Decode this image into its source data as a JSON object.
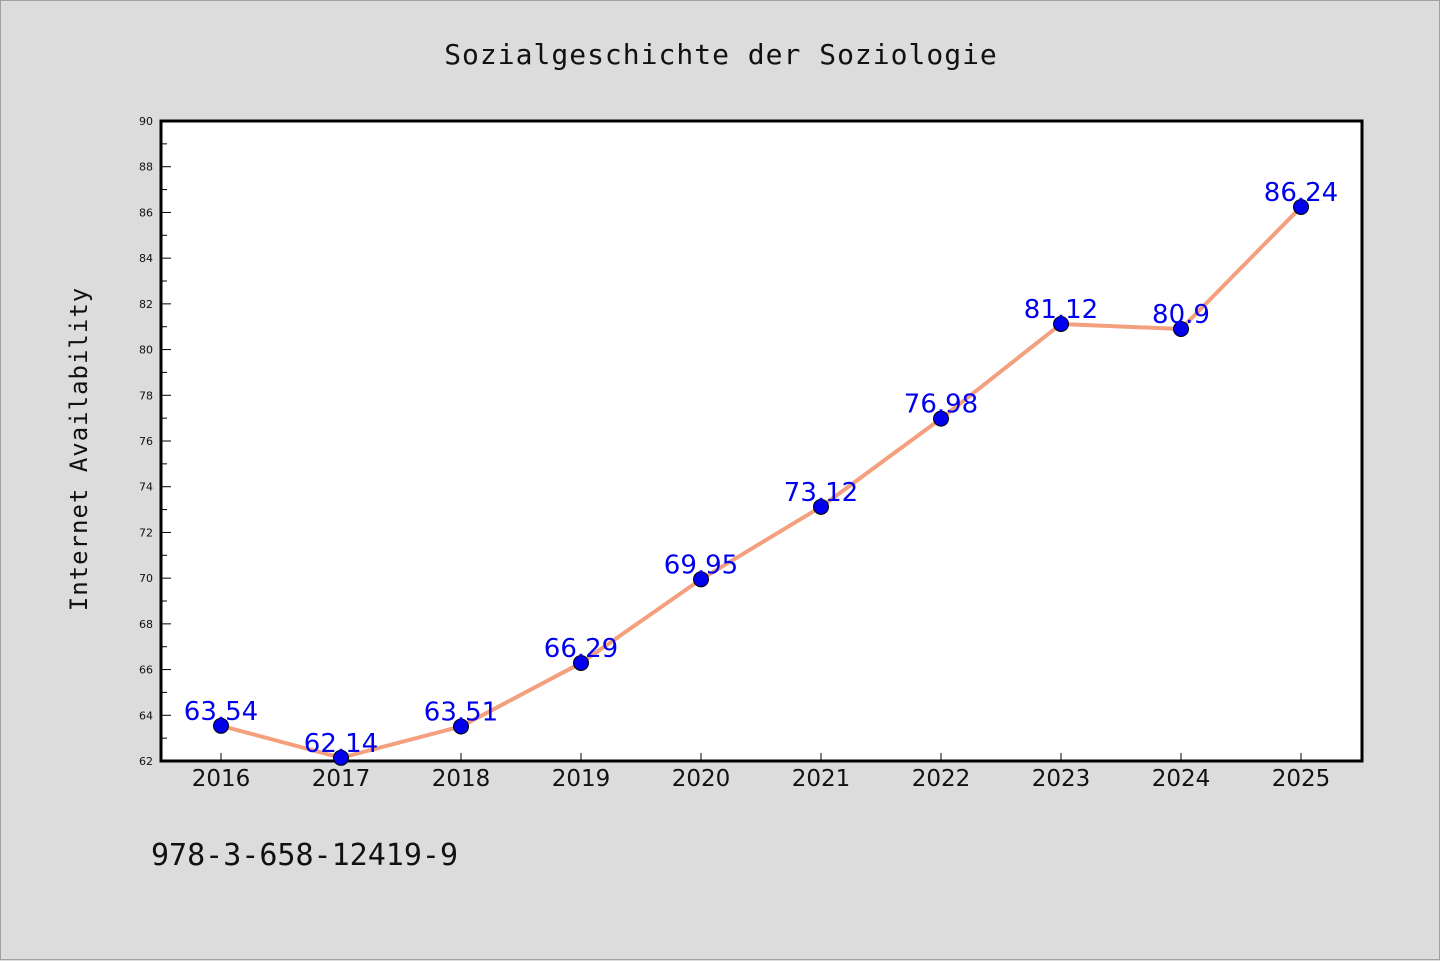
{
  "chart_data": {
    "type": "line",
    "title": "Sozialgeschichte der Soziologie",
    "xlabel": "",
    "ylabel": "Internet Availability",
    "x": [
      "2016",
      "2017",
      "2018",
      "2019",
      "2020",
      "2021",
      "2022",
      "2023",
      "2024",
      "2025"
    ],
    "series": [
      {
        "values": [
          63.54,
          62.14,
          63.51,
          66.29,
          69.95,
          73.12,
          76.98,
          81.12,
          80.9,
          86.24
        ],
        "data_labels": [
          "63.54",
          "62.14",
          "63.51",
          "66.29",
          "69.95",
          "73.12",
          "76.98",
          "81.12",
          "80.9",
          "86.24"
        ],
        "line_color": "#f4a07e",
        "marker_color": "#0000ee"
      }
    ],
    "ylim": [
      62,
      90
    ],
    "yticks": [
      "62",
      "64",
      "66",
      "68",
      "70",
      "72",
      "74",
      "76",
      "78",
      "80",
      "82",
      "84",
      "86",
      "88",
      "90"
    ],
    "grid": false,
    "legend": "none"
  },
  "footer": {
    "isbn": "978-3-658-12419-9"
  },
  "colors": {
    "background": "#dcdcdc",
    "plot_background": "#ffffff"
  }
}
